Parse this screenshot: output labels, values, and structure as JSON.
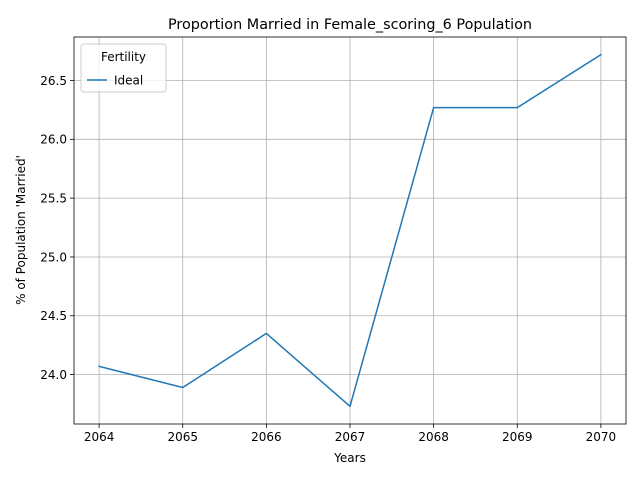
{
  "chart_data": {
    "type": "line",
    "title": "Proportion Married in Female_scoring_6 Population",
    "xlabel": "Years",
    "ylabel": "% of Population 'Married'",
    "x": [
      2064,
      2065,
      2066,
      2067,
      2068,
      2069,
      2070
    ],
    "series": [
      {
        "name": "Ideal",
        "color": "#1f77b4",
        "values": [
          24.07,
          23.89,
          24.35,
          23.73,
          26.27,
          26.27,
          26.72
        ]
      }
    ],
    "xlim": [
      2063.7,
      2070.3
    ],
    "ylim": [
      23.58,
      26.87
    ],
    "xticks": [
      2064,
      2065,
      2066,
      2067,
      2068,
      2069,
      2070
    ],
    "yticks": [
      "24.0",
      "24.5",
      "25.0",
      "25.5",
      "26.0",
      "26.5"
    ],
    "grid": true,
    "legend": {
      "title": "Fertility",
      "placement": "upper-left"
    }
  }
}
